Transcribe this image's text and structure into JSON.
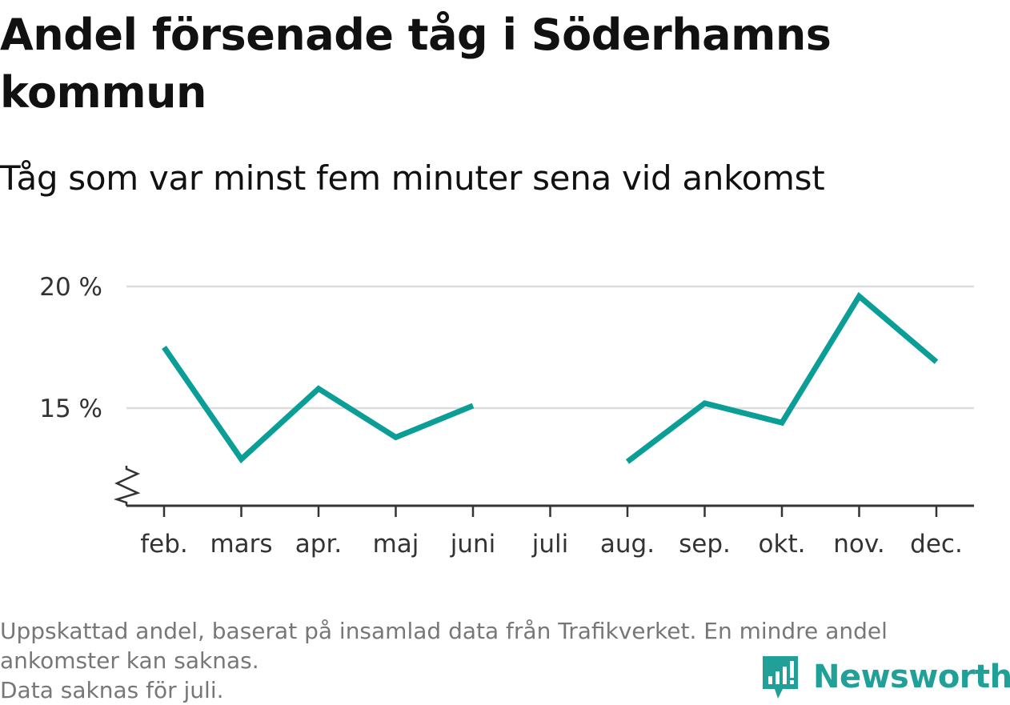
{
  "title": "Andel försenade tåg i Söderhamns kommun",
  "subtitle": "Tåg som var minst fem minuter sena vid ankomst",
  "notes": [
    "Uppskattad andel, baserat på insamlad data från Trafikverket. En mindre andel ankomster kan saknas.",
    "Data saknas för juli."
  ],
  "brand": {
    "name": "Newsworthy",
    "icon": "bar-chart-logo-icon",
    "color": "#21a097"
  },
  "colors": {
    "line": "#0a9e97",
    "grid": "#dddddd",
    "axis": "#333333"
  },
  "chart_data": {
    "type": "line",
    "categories": [
      "feb.",
      "mars",
      "apr.",
      "maj",
      "juni",
      "juli",
      "aug.",
      "sep.",
      "okt.",
      "nov.",
      "dec."
    ],
    "series": [
      {
        "values": [
          17.5,
          12.9,
          15.8,
          13.8,
          15.1,
          null,
          12.8,
          15.2,
          14.4,
          19.6,
          16.9
        ]
      }
    ],
    "yticks": [
      15,
      20
    ],
    "ytick_labels": [
      "15 %",
      "20 %"
    ],
    "ylim": [
      11,
      20
    ],
    "axis_break": true,
    "grid": true,
    "legend": "none"
  }
}
